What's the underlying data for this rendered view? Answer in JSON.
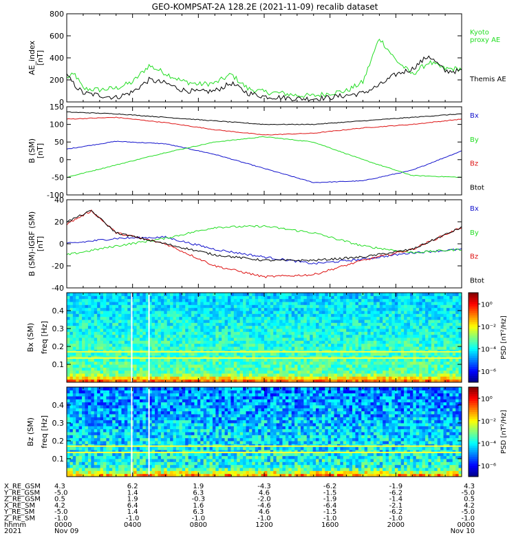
{
  "title": "GEO-KOMPSAT-2A 128.2E (2021-11-09) recalib dataset",
  "colors": {
    "black": "#000000",
    "green": "#22dd22",
    "red": "#dd1111",
    "blue": "#1111cc"
  },
  "chart_data": [
    {
      "type": "line",
      "ylabel_1": "AE_index",
      "ylabel_2": "[nT]",
      "ylim": [
        0,
        800
      ],
      "yticks": [
        0,
        200,
        400,
        600,
        800
      ],
      "legend": [
        {
          "name": "Kyoto",
          "color": "#22dd22"
        },
        {
          "name": "proxy AE",
          "color": "#22dd22"
        },
        {
          "name": "Themis AE",
          "color": "#000000"
        }
      ],
      "series": [
        {
          "name": "Kyoto proxy AE",
          "color": "#22dd22",
          "x": [
            0,
            0.5,
            1,
            2,
            3,
            4,
            5,
            6,
            7,
            8,
            9,
            10,
            11,
            12,
            13,
            14,
            15,
            16,
            17,
            18,
            19,
            20,
            21,
            22,
            23,
            24
          ],
          "y": [
            220,
            250,
            120,
            110,
            125,
            180,
            330,
            260,
            190,
            160,
            170,
            250,
            120,
            90,
            80,
            60,
            55,
            80,
            100,
            180,
            580,
            380,
            250,
            360,
            300,
            300
          ]
        },
        {
          "name": "Themis AE",
          "color": "#000000",
          "x": [
            0,
            0.5,
            1,
            2,
            3,
            4,
            5,
            6,
            7,
            8,
            9,
            10,
            11,
            12,
            13,
            14,
            15,
            16,
            17,
            18,
            19,
            20,
            21,
            22,
            23,
            24
          ],
          "y": [
            240,
            150,
            80,
            60,
            40,
            90,
            200,
            170,
            110,
            90,
            100,
            170,
            80,
            50,
            40,
            30,
            30,
            40,
            60,
            80,
            150,
            250,
            300,
            420,
            280,
            280
          ]
        }
      ]
    },
    {
      "type": "line",
      "ylabel_1": "B (SM)",
      "ylabel_2": "[nT]",
      "ylim": [
        -100,
        150
      ],
      "yticks": [
        -100,
        -50,
        0,
        50,
        100,
        150
      ],
      "legend": [
        {
          "name": "Bx",
          "color": "#1111cc"
        },
        {
          "name": "By",
          "color": "#22dd22"
        },
        {
          "name": "Bz",
          "color": "#dd1111"
        },
        {
          "name": "Btot",
          "color": "#000000"
        }
      ],
      "series": [
        {
          "name": "Bx",
          "color": "#1111cc",
          "x": [
            0,
            3,
            6,
            9,
            12,
            15,
            18,
            21,
            24
          ],
          "y": [
            30,
            52,
            45,
            15,
            -25,
            -65,
            -60,
            -30,
            25
          ]
        },
        {
          "name": "By",
          "color": "#22dd22",
          "x": [
            0,
            3,
            6,
            9,
            12,
            15,
            18,
            21,
            24
          ],
          "y": [
            -50,
            -15,
            20,
            50,
            65,
            50,
            0,
            -45,
            -50
          ]
        },
        {
          "name": "Bz",
          "color": "#dd1111",
          "x": [
            0,
            3,
            6,
            9,
            12,
            15,
            18,
            21,
            24
          ],
          "y": [
            115,
            120,
            105,
            85,
            70,
            75,
            90,
            100,
            115
          ]
        },
        {
          "name": "Btot",
          "color": "#000000",
          "x": [
            0,
            3,
            6,
            9,
            12,
            15,
            18,
            21,
            24
          ],
          "y": [
            135,
            130,
            120,
            110,
            100,
            100,
            110,
            120,
            130
          ]
        }
      ]
    },
    {
      "type": "line",
      "ylabel_1": "B (SM)-IGRF (SM)",
      "ylabel_2": "[nT]",
      "ylim": [
        -40,
        40
      ],
      "yticks": [
        -40,
        -20,
        0,
        20,
        40
      ],
      "legend": [
        {
          "name": "Bx",
          "color": "#1111cc"
        },
        {
          "name": "By",
          "color": "#22dd22"
        },
        {
          "name": "Bz",
          "color": "#dd1111"
        },
        {
          "name": "Btot",
          "color": "#000000"
        }
      ],
      "series": [
        {
          "name": "Bx",
          "color": "#1111cc",
          "x": [
            0,
            3,
            6,
            9,
            12,
            15,
            18,
            21,
            24
          ],
          "y": [
            0,
            5,
            6,
            -5,
            -12,
            -18,
            -14,
            -8,
            -5
          ]
        },
        {
          "name": "By",
          "color": "#22dd22",
          "x": [
            0,
            3,
            6,
            9,
            12,
            15,
            18,
            21,
            24
          ],
          "y": [
            -10,
            -2,
            5,
            15,
            16,
            10,
            -2,
            -8,
            -5
          ]
        },
        {
          "name": "Bz",
          "color": "#dd1111",
          "x": [
            0,
            1.5,
            3,
            6,
            9,
            12,
            15,
            18,
            21,
            24
          ],
          "y": [
            18,
            30,
            10,
            0,
            -20,
            -30,
            -28,
            -15,
            -5,
            15
          ]
        },
        {
          "name": "Btot",
          "color": "#000000",
          "x": [
            0,
            1.5,
            3,
            6,
            9,
            12,
            15,
            18,
            21,
            24
          ],
          "y": [
            20,
            30,
            10,
            0,
            -10,
            -15,
            -15,
            -12,
            -5,
            15
          ]
        }
      ]
    },
    {
      "type": "heatmap",
      "ylabel_1": "Bx (SM)",
      "ylabel_2": "freq [Hz]",
      "ylim": [
        0,
        0.5
      ],
      "yticks": [
        0.1,
        0.2,
        0.3,
        0.4
      ],
      "colorbar_label": "PSD [nT²/Hz]",
      "colorbar_ticks": [
        "10⁰",
        "10⁻²",
        "10⁻⁴",
        "10⁻⁶"
      ],
      "colorbar_exponents": [
        0,
        -2,
        -4,
        -6
      ],
      "colorbar_range": [
        -7,
        1
      ],
      "horizontal_lines_hz": [
        0.135,
        0.17
      ],
      "gap_lines_hour": [
        3.95,
        5.0
      ]
    },
    {
      "type": "heatmap",
      "ylabel_1": "Bz (SM)",
      "ylabel_2": "freq [Hz]",
      "ylim": [
        0,
        0.5
      ],
      "yticks": [
        0.1,
        0.2,
        0.3,
        0.4
      ],
      "colorbar_label": "PSD [nT²/Hz]",
      "colorbar_ticks": [
        "10⁰",
        "10⁻²",
        "10⁻⁴",
        "10⁻⁶"
      ],
      "colorbar_exponents": [
        0,
        -2,
        -4,
        -6
      ],
      "colorbar_range": [
        -7,
        1
      ],
      "horizontal_lines_hz": [
        0.135,
        0.17
      ],
      "gap_lines_hour": [
        3.95,
        5.0
      ]
    }
  ],
  "ephemeris": {
    "row_labels": [
      "X_RE_GSM",
      "Y_RE_GSM",
      "Z_RE_GSM",
      "X_RE_SM",
      "Y_RE_SM",
      "Z_RE_SM",
      "hhmm",
      "2021"
    ],
    "columns": [
      {
        "hour": 0,
        "values": [
          "4.3",
          "-5.0",
          "0.5",
          "4.2",
          "-5.0",
          "-1.0",
          "0000",
          "Nov 09"
        ]
      },
      {
        "hour": 4,
        "values": [
          "6.2",
          "1.4",
          "1.9",
          "6.4",
          "1.4",
          "-1.0",
          "0400",
          ""
        ]
      },
      {
        "hour": 8,
        "values": [
          "1.9",
          "6.3",
          "-0.3",
          "1.6",
          "6.3",
          "-1.0",
          "0800",
          ""
        ]
      },
      {
        "hour": 12,
        "values": [
          "-4.3",
          "4.6",
          "-2.0",
          "-4.6",
          "4.6",
          "-1.0",
          "1200",
          ""
        ]
      },
      {
        "hour": 16,
        "values": [
          "-6.2",
          "-1.5",
          "-1.9",
          "-6.4",
          "-1.5",
          "-1.0",
          "1600",
          ""
        ]
      },
      {
        "hour": 20,
        "values": [
          "-1.9",
          "-6.2",
          "-1.4",
          "-2.1",
          "-6.2",
          "-1.0",
          "2000",
          ""
        ]
      },
      {
        "hour": 24,
        "values": [
          "4.3",
          "-5.0",
          "0.5",
          "4.2",
          "-5.0",
          "-1.0",
          "0000",
          "Nov 10"
        ]
      }
    ]
  }
}
